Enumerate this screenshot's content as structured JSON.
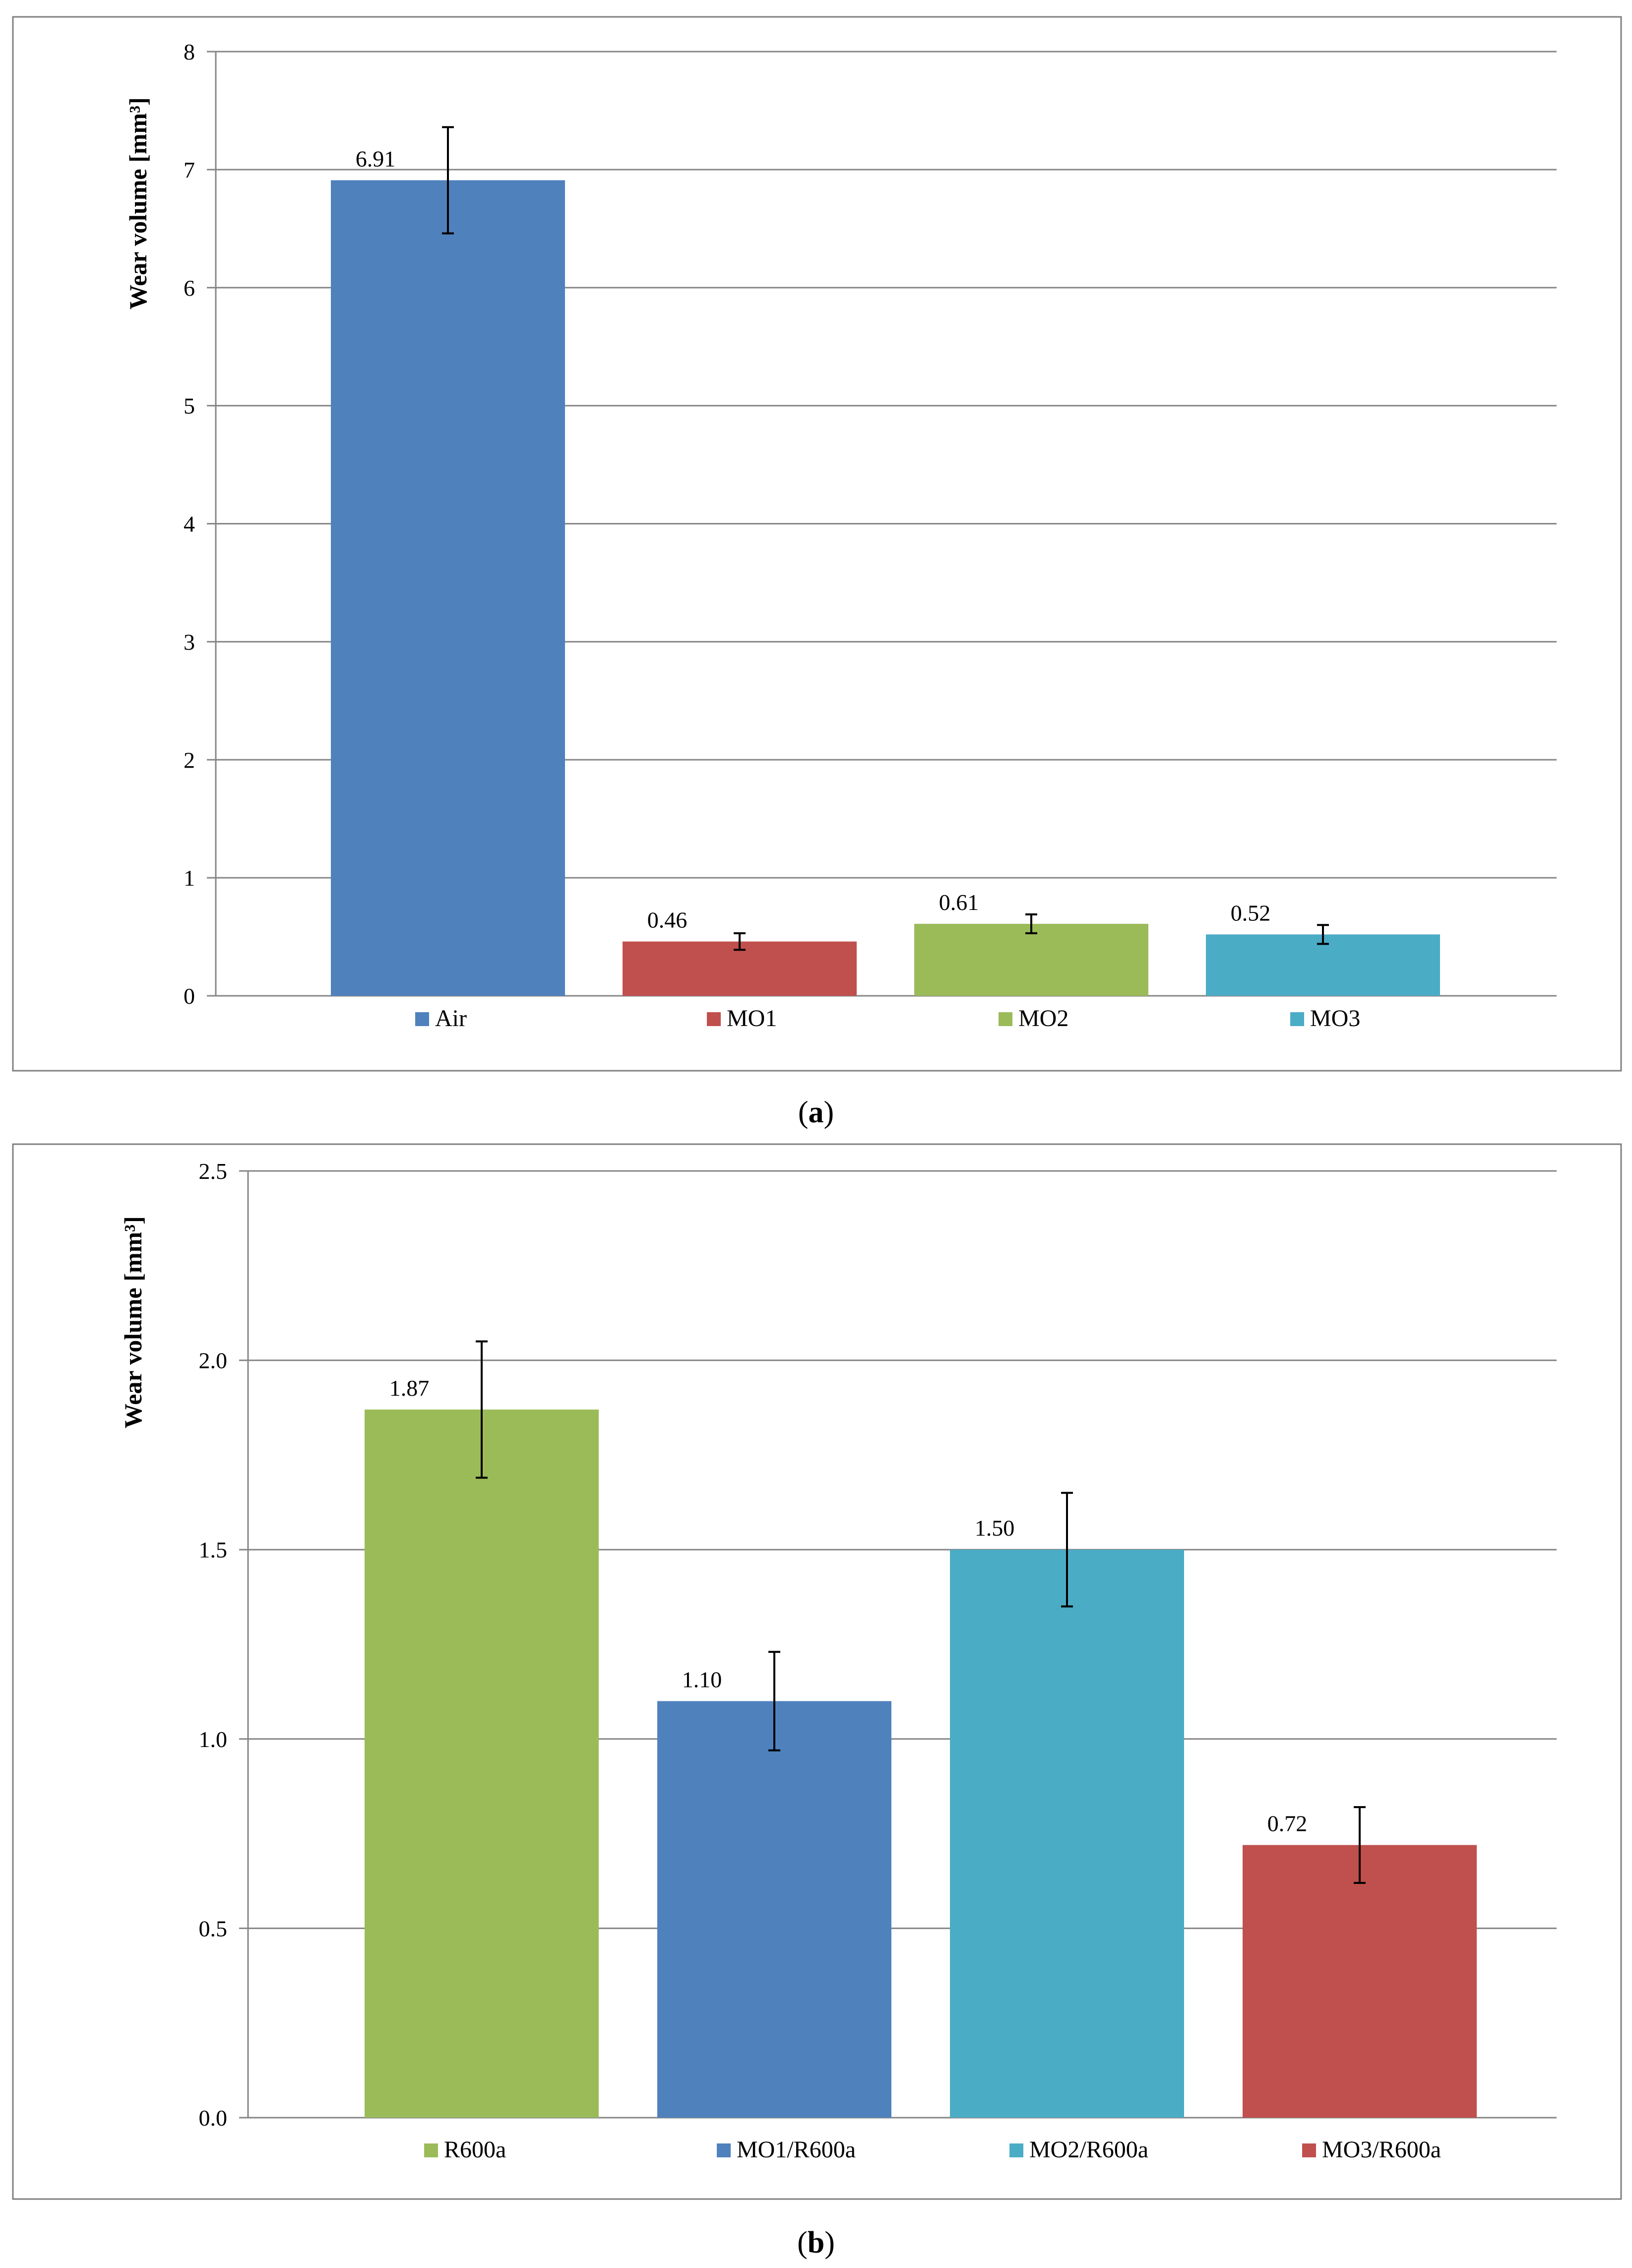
{
  "colors": {
    "blue": "#4f81bd",
    "red": "#c0504d",
    "green": "#9bbb59",
    "teal": "#4bacc6",
    "grid": "#868686",
    "frame": "#7f7f7f"
  },
  "chart_data": [
    {
      "type": "bar",
      "panel_label": "a",
      "title": "",
      "xlabel": "",
      "ylabel": "Wear volume [mm³]",
      "ylim": [
        0,
        8
      ],
      "yticks": [
        0,
        1,
        2,
        3,
        4,
        5,
        6,
        7,
        8
      ],
      "ytick_labels": [
        "0",
        "1",
        "2",
        "3",
        "4",
        "5",
        "6",
        "7",
        "8"
      ],
      "grid": true,
      "legend_position": "bottom",
      "categories": [
        "Air",
        "MO1",
        "MO2",
        "MO3"
      ],
      "values": [
        6.91,
        0.46,
        0.61,
        0.52
      ],
      "value_labels": [
        "6.91",
        "0.46",
        "0.61",
        "0.52"
      ],
      "errors": [
        0.45,
        0.07,
        0.08,
        0.08
      ],
      "bar_colors": [
        "#4f81bd",
        "#c0504d",
        "#9bbb59",
        "#4bacc6"
      ]
    },
    {
      "type": "bar",
      "panel_label": "b",
      "title": "",
      "xlabel": "",
      "ylabel": "Wear volume [mm³]",
      "ylim": [
        0,
        2.5
      ],
      "yticks": [
        0,
        0.5,
        1.0,
        1.5,
        2.0,
        2.5
      ],
      "ytick_labels": [
        "0.0",
        "0.5",
        "1.0",
        "1.5",
        "2.0",
        "2.5"
      ],
      "grid": true,
      "legend_position": "bottom",
      "categories": [
        "R600a",
        "MO1/R600a",
        "MO2/R600a",
        "MO3/R600a"
      ],
      "values": [
        1.87,
        1.1,
        1.5,
        0.72
      ],
      "value_labels": [
        "1.87",
        "1.10",
        "1.50",
        "0.72"
      ],
      "errors": [
        0.18,
        0.13,
        0.15,
        0.1
      ],
      "bar_colors": [
        "#9bbb59",
        "#4f81bd",
        "#4bacc6",
        "#c0504d"
      ]
    }
  ]
}
